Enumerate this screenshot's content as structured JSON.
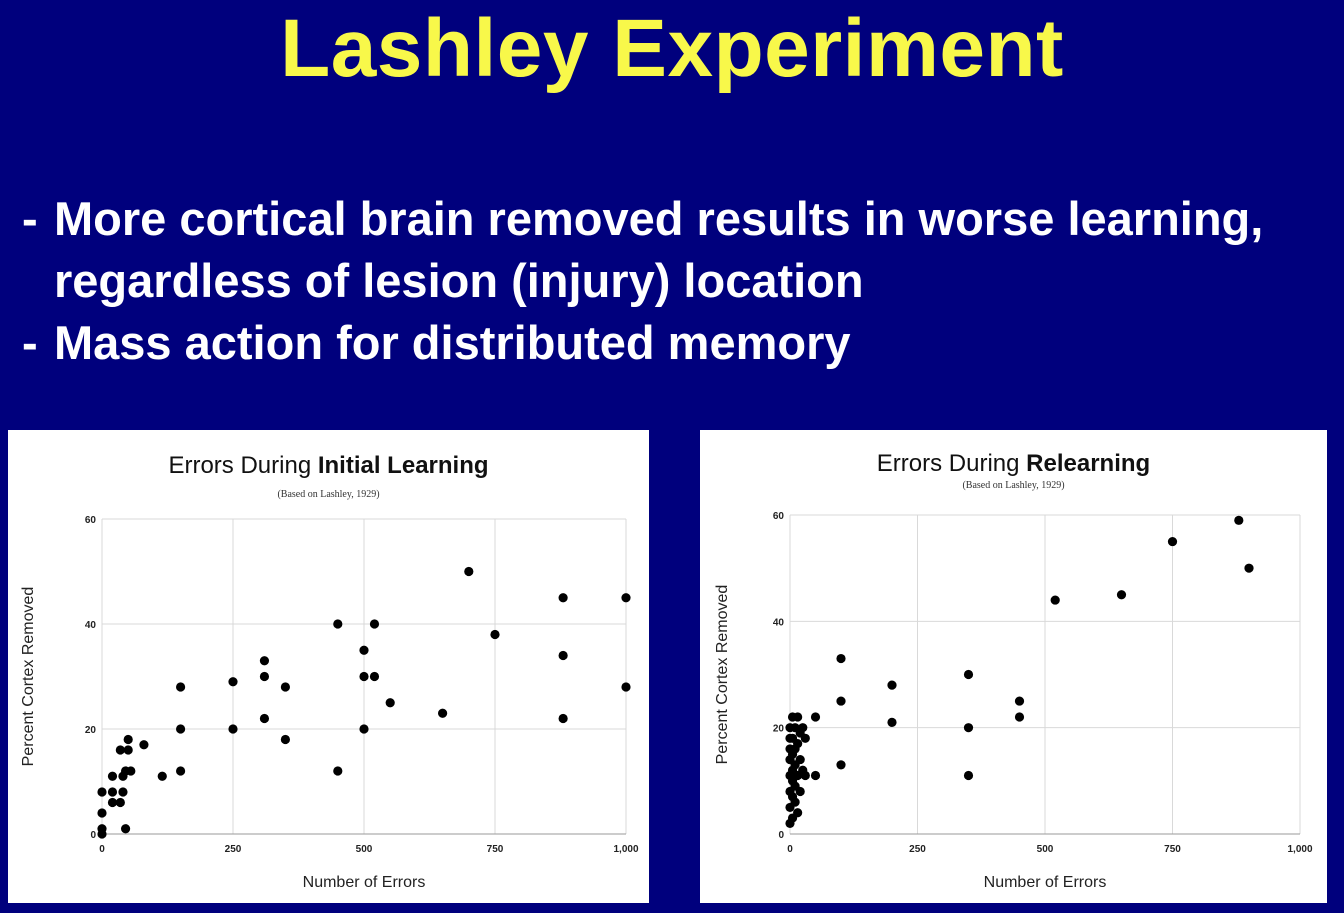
{
  "slide": {
    "title": "Lashley Experiment",
    "bullets": [
      {
        "dash": "-",
        "text": "More cortical brain removed results in worse learning, regardless of lesion (injury) location"
      },
      {
        "dash": "-",
        "text": "Mass action for distributed memory"
      }
    ]
  },
  "colors": {
    "background": "#00007d",
    "title": "#f8f84a",
    "bullet_text": "#ffffff",
    "panel_bg": "#ffffff",
    "point": "#000000",
    "grid": "#d9d9d9"
  },
  "chart_data": [
    {
      "type": "scatter",
      "title_prefix": "Errors During ",
      "title_bold": "Initial Learning",
      "subtitle": "(Based on Lashley, 1929)",
      "xlabel": "Number of Errors",
      "ylabel": "Percent Cortex Removed",
      "xlim": [
        0,
        1000
      ],
      "ylim": [
        0,
        60
      ],
      "xticks": [
        0,
        250,
        500,
        750,
        1000
      ],
      "xtick_labels": [
        "0",
        "250",
        "500",
        "750",
        "1,000"
      ],
      "yticks": [
        0,
        20,
        40,
        60
      ],
      "ytick_labels": [
        "0",
        "20",
        "40",
        "60"
      ],
      "grid": true,
      "points": [
        [
          0,
          0
        ],
        [
          0,
          1
        ],
        [
          0,
          4
        ],
        [
          0,
          8
        ],
        [
          20,
          8
        ],
        [
          20,
          11
        ],
        [
          20,
          6
        ],
        [
          35,
          16
        ],
        [
          35,
          6
        ],
        [
          40,
          8
        ],
        [
          40,
          11
        ],
        [
          45,
          1
        ],
        [
          45,
          12
        ],
        [
          50,
          16
        ],
        [
          50,
          18
        ],
        [
          55,
          12
        ],
        [
          80,
          17
        ],
        [
          115,
          11
        ],
        [
          150,
          28
        ],
        [
          150,
          20
        ],
        [
          150,
          12
        ],
        [
          250,
          29
        ],
        [
          250,
          20
        ],
        [
          310,
          33
        ],
        [
          310,
          30
        ],
        [
          310,
          22
        ],
        [
          350,
          28
        ],
        [
          350,
          18
        ],
        [
          450,
          40
        ],
        [
          450,
          12
        ],
        [
          500,
          35
        ],
        [
          500,
          30
        ],
        [
          500,
          20
        ],
        [
          520,
          40
        ],
        [
          520,
          30
        ],
        [
          550,
          25
        ],
        [
          650,
          23
        ],
        [
          700,
          50
        ],
        [
          750,
          38
        ],
        [
          880,
          45
        ],
        [
          880,
          34
        ],
        [
          880,
          22
        ],
        [
          1000,
          45
        ],
        [
          1000,
          28
        ]
      ]
    },
    {
      "type": "scatter",
      "title_prefix": "Errors During ",
      "title_bold": "Relearning",
      "subtitle": "(Based on Lashley, 1929)",
      "xlabel": "Number of Errors",
      "ylabel": "Percent Cortex Removed",
      "xlim": [
        0,
        1000
      ],
      "ylim": [
        0,
        60
      ],
      "xticks": [
        0,
        250,
        500,
        750,
        1000
      ],
      "xtick_labels": [
        "0",
        "250",
        "500",
        "750",
        "1,000"
      ],
      "yticks": [
        0,
        20,
        40,
        60
      ],
      "ytick_labels": [
        "0",
        "20",
        "40",
        "60"
      ],
      "grid": true,
      "points": [
        [
          0,
          20
        ],
        [
          0,
          18
        ],
        [
          0,
          16
        ],
        [
          0,
          14
        ],
        [
          0,
          11
        ],
        [
          0,
          8
        ],
        [
          0,
          5
        ],
        [
          0,
          2
        ],
        [
          5,
          22
        ],
        [
          5,
          18
        ],
        [
          5,
          15
        ],
        [
          5,
          12
        ],
        [
          5,
          10
        ],
        [
          5,
          7
        ],
        [
          5,
          3
        ],
        [
          10,
          20
        ],
        [
          10,
          16
        ],
        [
          10,
          13
        ],
        [
          10,
          9
        ],
        [
          10,
          6
        ],
        [
          15,
          22
        ],
        [
          15,
          17
        ],
        [
          15,
          11
        ],
        [
          15,
          4
        ],
        [
          20,
          19
        ],
        [
          20,
          14
        ],
        [
          20,
          8
        ],
        [
          25,
          20
        ],
        [
          25,
          12
        ],
        [
          30,
          18
        ],
        [
          30,
          11
        ],
        [
          50,
          22
        ],
        [
          50,
          11
        ],
        [
          100,
          33
        ],
        [
          100,
          25
        ],
        [
          100,
          13
        ],
        [
          200,
          28
        ],
        [
          200,
          21
        ],
        [
          350,
          30
        ],
        [
          350,
          20
        ],
        [
          350,
          11
        ],
        [
          450,
          25
        ],
        [
          450,
          22
        ],
        [
          520,
          44
        ],
        [
          650,
          45
        ],
        [
          750,
          55
        ],
        [
          880,
          59
        ],
        [
          900,
          50
        ]
      ]
    }
  ]
}
